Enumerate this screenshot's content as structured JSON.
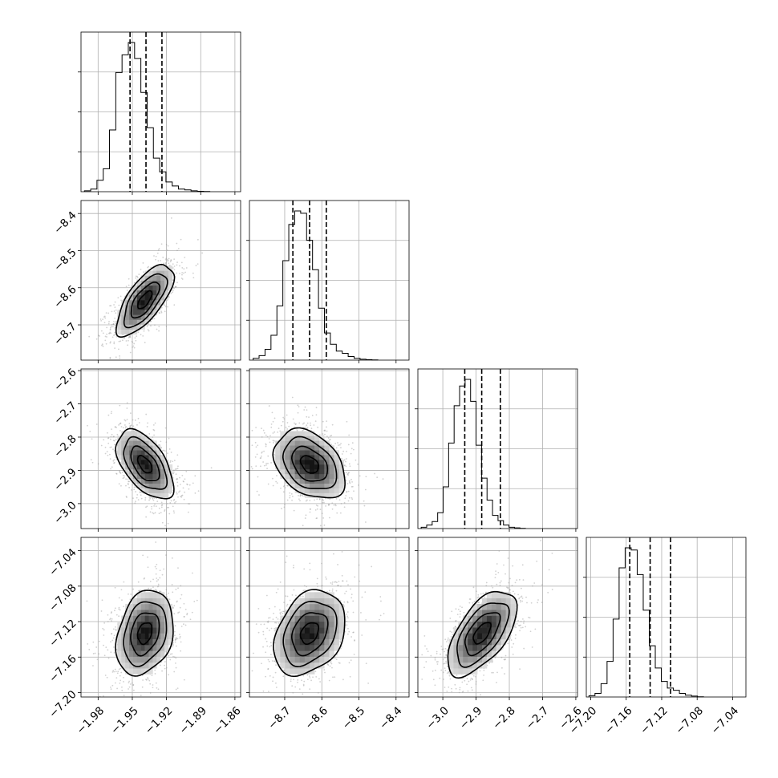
{
  "chart_data": {
    "type": "corner",
    "parameters": [
      {
        "range": [
          -1.995,
          -1.855
        ],
        "ticks": [
          -1.98,
          -1.95,
          -1.92,
          -1.89,
          -1.86
        ],
        "tick_labels": [
          "−1.98",
          "−1.95",
          "−1.92",
          "−1.89",
          "−1.86"
        ],
        "median": -1.938,
        "q16": -1.952,
        "q84": -1.924,
        "histogram": {
          "bin_start": -1.992,
          "bin_width": 0.0055,
          "counts": [
            0.2,
            0.6,
            2.6,
            5.2,
            14.0,
            27.0,
            31.0,
            33.8,
            30.2,
            22.5,
            14.5,
            7.6,
            4.5,
            2.2,
            1.3,
            0.6,
            0.4,
            0.2,
            0.1,
            0.05
          ]
        }
      },
      {
        "range": [
          -8.795,
          -8.365
        ],
        "ticks": [
          -8.7,
          -8.6,
          -8.5,
          -8.4
        ],
        "tick_labels": [
          "−8.7",
          "−8.6",
          "−8.5",
          "−8.4"
        ],
        "median": -8.633,
        "q16": -8.678,
        "q84": -8.588,
        "histogram": {
          "bin_start": -8.785,
          "bin_width": 0.016,
          "counts": [
            0.4,
            1.0,
            2.4,
            5.5,
            12.0,
            22.0,
            30.0,
            33.0,
            32.5,
            26.5,
            20.0,
            11.5,
            6.0,
            3.5,
            2.0,
            1.5,
            0.8,
            0.4,
            0.2,
            0.1,
            0.05
          ]
        }
      },
      {
        "range": [
          -3.075,
          -2.595
        ],
        "ticks": [
          -3.0,
          -2.9,
          -2.8,
          -2.7,
          -2.6
        ],
        "tick_labels": [
          "−3.0",
          "−2.9",
          "−2.8",
          "−2.7",
          "−2.6"
        ],
        "median": -2.883,
        "q16": -2.934,
        "q84": -2.827,
        "histogram": {
          "bin_start": -3.065,
          "bin_width": 0.0165,
          "counts": [
            0.3,
            0.8,
            1.6,
            3.6,
            9.5,
            19.5,
            28.0,
            32.5,
            34.0,
            29.0,
            19.0,
            11.5,
            6.5,
            3.0,
            1.8,
            0.8,
            0.3,
            0.15,
            0.05
          ]
        }
      },
      {
        "range": [
          -7.205,
          -7.025
        ],
        "ticks": [
          -7.2,
          -7.16,
          -7.12,
          -7.08,
          -7.04
        ],
        "tick_labels": [
          "−7.20",
          "−7.16",
          "−7.12",
          "−7.08",
          "−7.04"
        ],
        "median": -7.133,
        "q16": -7.156,
        "q84": -7.11,
        "histogram": {
          "bin_start": -7.202,
          "bin_width": 0.0068,
          "counts": [
            0.3,
            0.8,
            3.0,
            8.0,
            17.5,
            29.0,
            33.5,
            33.0,
            27.5,
            19.5,
            11.5,
            6.5,
            3.5,
            2.0,
            1.5,
            0.8,
            0.4,
            0.2,
            0.05
          ]
        }
      }
    ],
    "pairs": [
      {
        "x": 0,
        "y": 1,
        "center": [
          -1.939,
          -8.633
        ],
        "sigma": [
          0.0125,
          0.048
        ],
        "corr": 0.7
      },
      {
        "x": 0,
        "y": 2,
        "center": [
          -1.939,
          -2.882
        ],
        "sigma": [
          0.0125,
          0.052
        ],
        "corr": -0.55
      },
      {
        "x": 1,
        "y": 2,
        "center": [
          -8.633,
          -2.882
        ],
        "sigma": [
          0.048,
          0.052
        ],
        "corr": -0.35
      },
      {
        "x": 0,
        "y": 3,
        "center": [
          -1.939,
          -7.133
        ],
        "sigma": [
          0.0125,
          0.024
        ],
        "corr": 0.25
      },
      {
        "x": 1,
        "y": 3,
        "center": [
          -8.633,
          -7.133
        ],
        "sigma": [
          0.048,
          0.024
        ],
        "corr": 0.3
      },
      {
        "x": 2,
        "y": 3,
        "center": [
          -2.882,
          -7.133
        ],
        "sigma": [
          0.052,
          0.024
        ],
        "corr": 0.6
      }
    ],
    "contour_levels_sigma": [
      0.5,
      1.0,
      1.5,
      2.0
    ],
    "grid": true,
    "colors": {
      "points": "#9a9a9a",
      "contour": "#000000",
      "quantile": "#000000"
    }
  }
}
